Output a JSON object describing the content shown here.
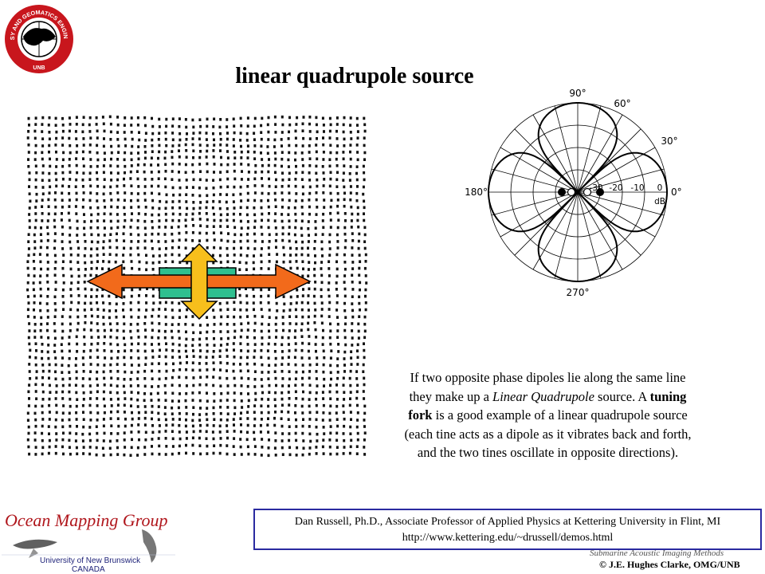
{
  "slide": {
    "title": "linear quadrupole source",
    "logo_text": {
      "top": "GEODESY AND GEOMATICS ENGINEERING",
      "bottom": "UNB"
    },
    "description": {
      "p1": "If two opposite phase dipoles lie along the same line they make up a ",
      "p1_italic": "Linear Quadrupole",
      "p2": " source. A ",
      "p2_bold": "tuning fork",
      "p3": " is a good example of a linear quadrupole source (each tine acts as a dipole as it vibrates back and forth, and the two tines oscillate in opposite directions)."
    },
    "credit": {
      "line1": "Dan Russell, Ph.D., Associate Professor of Applied Physics at Kettering University in Flint, MI",
      "line2": "http://www.kettering.edu/~drussell/demos.html"
    },
    "footer": {
      "org_name": "Ocean Mapping Group",
      "org_sub1": "University of New Brunswick",
      "org_sub2": "CANADA",
      "course": "Submarine Acoustic Imaging Methods",
      "copyright": "© J.E. Hughes Clarke, OMG/UNB"
    }
  },
  "polar": {
    "angle_labels": [
      "90°",
      "60°",
      "30°",
      "0°",
      "180°",
      "270°"
    ],
    "db_labels": [
      "-30",
      "-20",
      "-10",
      "0"
    ],
    "unit": "dB"
  },
  "colors": {
    "arrow_horizontal": "#f26a1b",
    "arrow_vertical": "#f7bf1c",
    "box": "#2fbf8f",
    "logo_red": "#c8161d",
    "frame_blue": "#2a2aa0",
    "omg_red": "#b0161c"
  }
}
